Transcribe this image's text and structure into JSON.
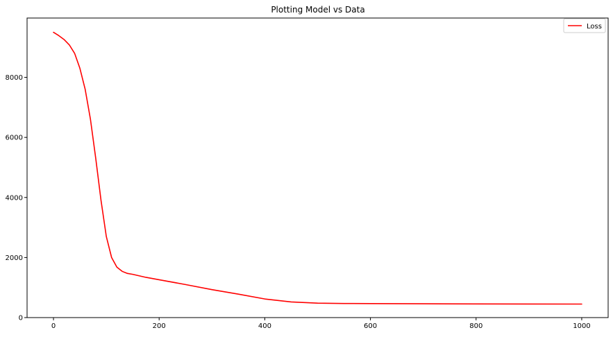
{
  "chart_data": {
    "type": "line",
    "title": "Plotting Model vs Data",
    "xlabel": "",
    "ylabel": "",
    "xlim": [
      -50,
      1050
    ],
    "ylim": [
      0,
      9975
    ],
    "grid": false,
    "legend_position": "top-right",
    "x_ticks": [
      0,
      200,
      400,
      600,
      800,
      1000
    ],
    "y_ticks": [
      0,
      2000,
      4000,
      6000,
      8000
    ],
    "x_tick_labels": [
      "0",
      "200",
      "400",
      "600",
      "800",
      "1000"
    ],
    "y_tick_labels": [
      "0",
      "2000",
      "4000",
      "6000",
      "8000"
    ],
    "series": [
      {
        "name": "Loss",
        "color": "#ff0000",
        "x": [
          0,
          10,
          20,
          30,
          40,
          50,
          60,
          70,
          80,
          90,
          100,
          110,
          120,
          130,
          140,
          150,
          175,
          200,
          250,
          300,
          350,
          400,
          450,
          500,
          550,
          600,
          700,
          800,
          900,
          1000
        ],
        "y": [
          9500,
          9390,
          9260,
          9080,
          8800,
          8300,
          7600,
          6600,
          5300,
          3900,
          2700,
          2000,
          1680,
          1540,
          1470,
          1440,
          1340,
          1260,
          1100,
          930,
          780,
          620,
          520,
          480,
          470,
          465,
          460,
          455,
          452,
          450
        ]
      }
    ]
  }
}
